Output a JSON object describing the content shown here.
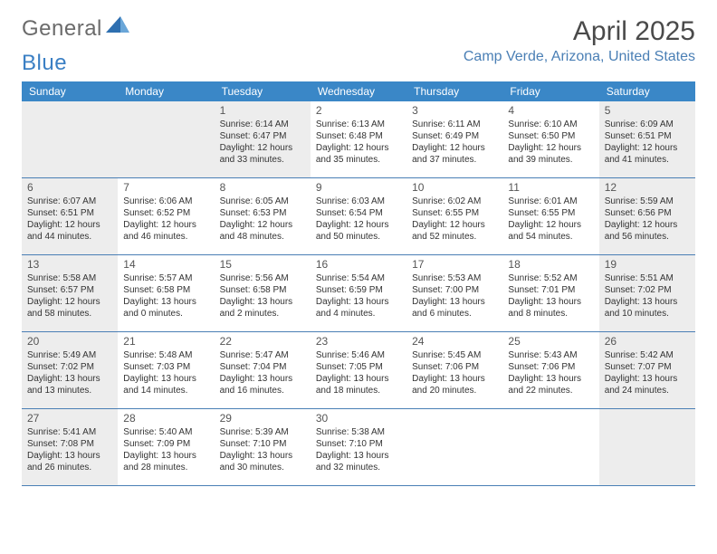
{
  "brand": {
    "part1": "General",
    "part2": "Blue"
  },
  "title": "April 2025",
  "location": "Camp Verde, Arizona, United States",
  "colors": {
    "header_bg": "#3a87c7",
    "header_text": "#ffffff",
    "rule": "#4a7fb5",
    "shaded_cell": "#ededed",
    "body_text": "#333333",
    "title_text": "#4a4a4a",
    "location_text": "#4a7fb5"
  },
  "weekdays": [
    "Sunday",
    "Monday",
    "Tuesday",
    "Wednesday",
    "Thursday",
    "Friday",
    "Saturday"
  ],
  "weeks": [
    [
      {
        "shaded": true
      },
      {
        "shaded": true
      },
      {
        "num": "1",
        "shaded": true,
        "sunrise": "Sunrise: 6:14 AM",
        "sunset": "Sunset: 6:47 PM",
        "daylight": "Daylight: 12 hours and 33 minutes."
      },
      {
        "num": "2",
        "sunrise": "Sunrise: 6:13 AM",
        "sunset": "Sunset: 6:48 PM",
        "daylight": "Daylight: 12 hours and 35 minutes."
      },
      {
        "num": "3",
        "sunrise": "Sunrise: 6:11 AM",
        "sunset": "Sunset: 6:49 PM",
        "daylight": "Daylight: 12 hours and 37 minutes."
      },
      {
        "num": "4",
        "sunrise": "Sunrise: 6:10 AM",
        "sunset": "Sunset: 6:50 PM",
        "daylight": "Daylight: 12 hours and 39 minutes."
      },
      {
        "num": "5",
        "shaded": true,
        "sunrise": "Sunrise: 6:09 AM",
        "sunset": "Sunset: 6:51 PM",
        "daylight": "Daylight: 12 hours and 41 minutes."
      }
    ],
    [
      {
        "num": "6",
        "shaded": true,
        "sunrise": "Sunrise: 6:07 AM",
        "sunset": "Sunset: 6:51 PM",
        "daylight": "Daylight: 12 hours and 44 minutes."
      },
      {
        "num": "7",
        "sunrise": "Sunrise: 6:06 AM",
        "sunset": "Sunset: 6:52 PM",
        "daylight": "Daylight: 12 hours and 46 minutes."
      },
      {
        "num": "8",
        "sunrise": "Sunrise: 6:05 AM",
        "sunset": "Sunset: 6:53 PM",
        "daylight": "Daylight: 12 hours and 48 minutes."
      },
      {
        "num": "9",
        "sunrise": "Sunrise: 6:03 AM",
        "sunset": "Sunset: 6:54 PM",
        "daylight": "Daylight: 12 hours and 50 minutes."
      },
      {
        "num": "10",
        "sunrise": "Sunrise: 6:02 AM",
        "sunset": "Sunset: 6:55 PM",
        "daylight": "Daylight: 12 hours and 52 minutes."
      },
      {
        "num": "11",
        "sunrise": "Sunrise: 6:01 AM",
        "sunset": "Sunset: 6:55 PM",
        "daylight": "Daylight: 12 hours and 54 minutes."
      },
      {
        "num": "12",
        "shaded": true,
        "sunrise": "Sunrise: 5:59 AM",
        "sunset": "Sunset: 6:56 PM",
        "daylight": "Daylight: 12 hours and 56 minutes."
      }
    ],
    [
      {
        "num": "13",
        "shaded": true,
        "sunrise": "Sunrise: 5:58 AM",
        "sunset": "Sunset: 6:57 PM",
        "daylight": "Daylight: 12 hours and 58 minutes."
      },
      {
        "num": "14",
        "sunrise": "Sunrise: 5:57 AM",
        "sunset": "Sunset: 6:58 PM",
        "daylight": "Daylight: 13 hours and 0 minutes."
      },
      {
        "num": "15",
        "sunrise": "Sunrise: 5:56 AM",
        "sunset": "Sunset: 6:58 PM",
        "daylight": "Daylight: 13 hours and 2 minutes."
      },
      {
        "num": "16",
        "sunrise": "Sunrise: 5:54 AM",
        "sunset": "Sunset: 6:59 PM",
        "daylight": "Daylight: 13 hours and 4 minutes."
      },
      {
        "num": "17",
        "sunrise": "Sunrise: 5:53 AM",
        "sunset": "Sunset: 7:00 PM",
        "daylight": "Daylight: 13 hours and 6 minutes."
      },
      {
        "num": "18",
        "sunrise": "Sunrise: 5:52 AM",
        "sunset": "Sunset: 7:01 PM",
        "daylight": "Daylight: 13 hours and 8 minutes."
      },
      {
        "num": "19",
        "shaded": true,
        "sunrise": "Sunrise: 5:51 AM",
        "sunset": "Sunset: 7:02 PM",
        "daylight": "Daylight: 13 hours and 10 minutes."
      }
    ],
    [
      {
        "num": "20",
        "shaded": true,
        "sunrise": "Sunrise: 5:49 AM",
        "sunset": "Sunset: 7:02 PM",
        "daylight": "Daylight: 13 hours and 13 minutes."
      },
      {
        "num": "21",
        "sunrise": "Sunrise: 5:48 AM",
        "sunset": "Sunset: 7:03 PM",
        "daylight": "Daylight: 13 hours and 14 minutes."
      },
      {
        "num": "22",
        "sunrise": "Sunrise: 5:47 AM",
        "sunset": "Sunset: 7:04 PM",
        "daylight": "Daylight: 13 hours and 16 minutes."
      },
      {
        "num": "23",
        "sunrise": "Sunrise: 5:46 AM",
        "sunset": "Sunset: 7:05 PM",
        "daylight": "Daylight: 13 hours and 18 minutes."
      },
      {
        "num": "24",
        "sunrise": "Sunrise: 5:45 AM",
        "sunset": "Sunset: 7:06 PM",
        "daylight": "Daylight: 13 hours and 20 minutes."
      },
      {
        "num": "25",
        "sunrise": "Sunrise: 5:43 AM",
        "sunset": "Sunset: 7:06 PM",
        "daylight": "Daylight: 13 hours and 22 minutes."
      },
      {
        "num": "26",
        "shaded": true,
        "sunrise": "Sunrise: 5:42 AM",
        "sunset": "Sunset: 7:07 PM",
        "daylight": "Daylight: 13 hours and 24 minutes."
      }
    ],
    [
      {
        "num": "27",
        "shaded": true,
        "sunrise": "Sunrise: 5:41 AM",
        "sunset": "Sunset: 7:08 PM",
        "daylight": "Daylight: 13 hours and 26 minutes."
      },
      {
        "num": "28",
        "sunrise": "Sunrise: 5:40 AM",
        "sunset": "Sunset: 7:09 PM",
        "daylight": "Daylight: 13 hours and 28 minutes."
      },
      {
        "num": "29",
        "sunrise": "Sunrise: 5:39 AM",
        "sunset": "Sunset: 7:10 PM",
        "daylight": "Daylight: 13 hours and 30 minutes."
      },
      {
        "num": "30",
        "sunrise": "Sunrise: 5:38 AM",
        "sunset": "Sunset: 7:10 PM",
        "daylight": "Daylight: 13 hours and 32 minutes."
      },
      {},
      {},
      {
        "shaded": true
      }
    ]
  ]
}
